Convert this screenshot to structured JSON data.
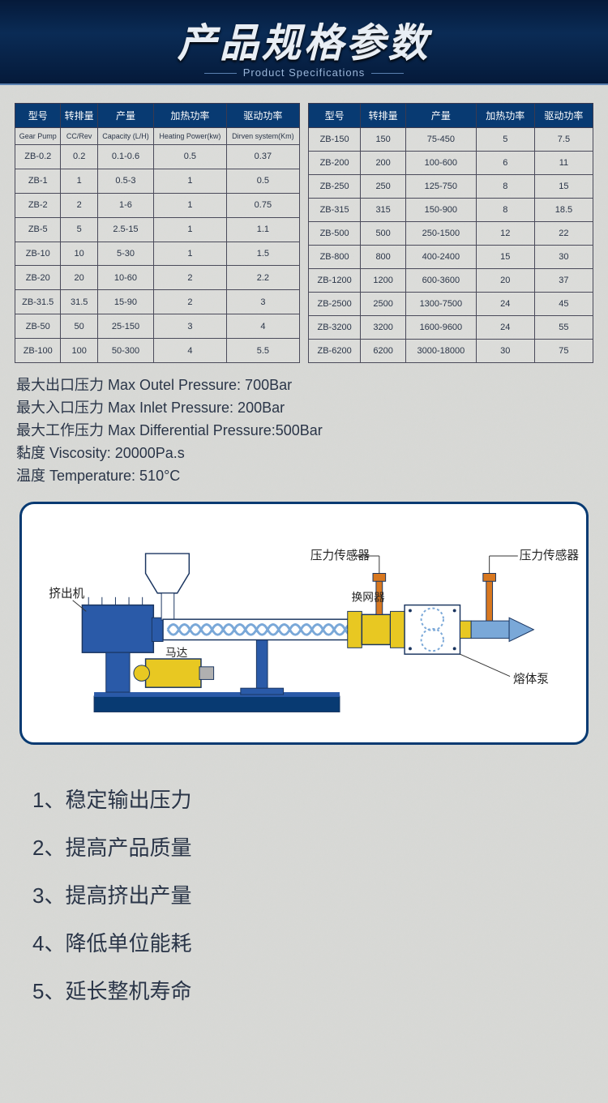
{
  "banner": {
    "title": "产品规格参数",
    "subtitle": "Product Specifications"
  },
  "table_headers": {
    "model": "型号",
    "cc": "转排量",
    "capacity": "产量",
    "heat": "加热功率",
    "drive": "驱动功率"
  },
  "table_subheaders": {
    "model": "Gear Pump",
    "cc": "CC/Rev",
    "capacity": "Capacity (L/H)",
    "heat": "Heating Power(kw)",
    "drive": "Dirven system(Km)"
  },
  "table1_rows": [
    [
      "ZB-0.2",
      "0.2",
      "0.1-0.6",
      "0.5",
      "0.37"
    ],
    [
      "ZB-1",
      "1",
      "0.5-3",
      "1",
      "0.5"
    ],
    [
      "ZB-2",
      "2",
      "1-6",
      "1",
      "0.75"
    ],
    [
      "ZB-5",
      "5",
      "2.5-15",
      "1",
      "1.1"
    ],
    [
      "ZB-10",
      "10",
      "5-30",
      "1",
      "1.5"
    ],
    [
      "ZB-20",
      "20",
      "10-60",
      "2",
      "2.2"
    ],
    [
      "ZB-31.5",
      "31.5",
      "15-90",
      "2",
      "3"
    ],
    [
      "ZB-50",
      "50",
      "25-150",
      "3",
      "4"
    ],
    [
      "ZB-100",
      "100",
      "50-300",
      "4",
      "5.5"
    ]
  ],
  "table2_rows": [
    [
      "ZB-150",
      "150",
      "75-450",
      "5",
      "7.5"
    ],
    [
      "ZB-200",
      "200",
      "100-600",
      "6",
      "11"
    ],
    [
      "ZB-250",
      "250",
      "125-750",
      "8",
      "15"
    ],
    [
      "ZB-315",
      "315",
      "150-900",
      "8",
      "18.5"
    ],
    [
      "ZB-500",
      "500",
      "250-1500",
      "12",
      "22"
    ],
    [
      "ZB-800",
      "800",
      "400-2400",
      "15",
      "30"
    ],
    [
      "ZB-1200",
      "1200",
      "600-3600",
      "20",
      "37"
    ],
    [
      "ZB-2500",
      "2500",
      "1300-7500",
      "24",
      "45"
    ],
    [
      "ZB-3200",
      "3200",
      "1600-9600",
      "24",
      "55"
    ],
    [
      "ZB-6200",
      "6200",
      "3000-18000",
      "30",
      "75"
    ]
  ],
  "notes": [
    "最大出口压力  Max Outel Pressure: 700Bar",
    "最大入口压力  Max Inlet  Pressure: 200Bar",
    "最大工作压力  Max Differential Pressure:500Bar",
    "黏度  Viscosity: 20000Pa.s",
    "温度  Temperature: 510°C"
  ],
  "diagram": {
    "labels": {
      "extruder": "挤出机",
      "motor": "马达",
      "sensor1": "压力传感器",
      "screen": "换网器",
      "sensor2": "压力传感器",
      "pump": "熔体泵"
    },
    "colors": {
      "blue": "#2a5aa8",
      "darkblue": "#083a72",
      "yellow": "#e8c822",
      "lightblue": "#7aa8d8",
      "grey": "#b0b0b0",
      "orange": "#d87820",
      "stroke": "#1a3560"
    }
  },
  "benefits": [
    "1、稳定输出压力",
    "2、提高产品质量",
    "3、提高挤出产量",
    "4、降低单位能耗",
    "5、延长整机寿命"
  ]
}
